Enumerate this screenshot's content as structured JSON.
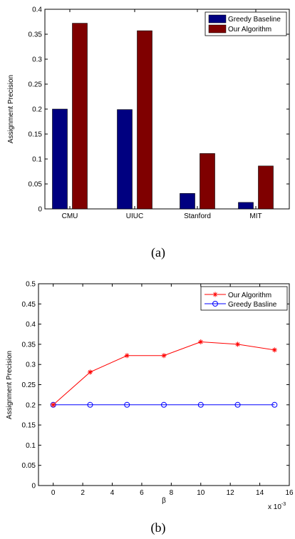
{
  "chart_data": [
    {
      "type": "bar",
      "categories": [
        "CMU",
        "UIUC",
        "Stanford",
        "MIT"
      ],
      "series": [
        {
          "name": "Greedy Baseline",
          "values": [
            0.2,
            0.199,
            0.031,
            0.013
          ],
          "color": "#000080"
        },
        {
          "name": "Our Algorithm",
          "values": [
            0.372,
            0.357,
            0.111,
            0.086
          ],
          "color": "#7f0000"
        }
      ],
      "ylabel": "Assignment Precision",
      "xlabel": "",
      "ylim": [
        0,
        0.4
      ],
      "yticks": [
        "0",
        "0.05",
        "0.1",
        "0.15",
        "0.2",
        "0.25",
        "0.3",
        "0.35",
        "0.4"
      ],
      "legend_position": "top-right",
      "caption": "(a)"
    },
    {
      "type": "line",
      "x": [
        0,
        2.5,
        5,
        7.5,
        10,
        12.5,
        15
      ],
      "series": [
        {
          "name": "Our Algorithm",
          "values": [
            0.2,
            0.281,
            0.322,
            0.322,
            0.356,
            0.35,
            0.336
          ],
          "color": "#ff0000",
          "marker": "asterisk"
        },
        {
          "name": "Greedy Basline",
          "values": [
            0.2,
            0.2,
            0.2,
            0.2,
            0.2,
            0.2,
            0.2
          ],
          "color": "#0000ff",
          "marker": "circle"
        }
      ],
      "xlabel": "β",
      "ylabel": "Assignment Precision",
      "xlim": [
        -1,
        16
      ],
      "ylim": [
        0,
        0.5
      ],
      "xticks": [
        "0",
        "2",
        "4",
        "6",
        "8",
        "10",
        "12",
        "14",
        "16"
      ],
      "yticks": [
        "0",
        "0.05",
        "0.1",
        "0.15",
        "0.2",
        "0.25",
        "0.3",
        "0.35",
        "0.4",
        "0.45",
        "0.5"
      ],
      "x_multiplier": "x 10",
      "x_multiplier_exp": "-3",
      "legend_position": "top-right",
      "caption": "(b)"
    }
  ]
}
